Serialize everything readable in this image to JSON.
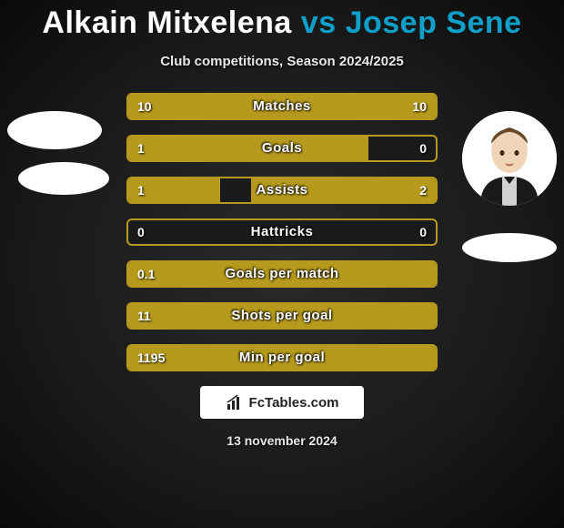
{
  "title": {
    "player1": "Alkain Mitxelena",
    "vs": "vs",
    "player2": "Josep Sene"
  },
  "subtitle": "Club competitions, Season 2024/2025",
  "colors": {
    "accent_bar": "#b69a1d",
    "title_p1": "#ffffff",
    "title_vs": "#0f9fc9",
    "title_p2": "#0f9fc9",
    "background_inner": "#2a2a2a",
    "background_outer": "#0a0a0a",
    "badge_bg": "#ffffff"
  },
  "bars": [
    {
      "label": "Matches",
      "left_val": "10",
      "right_val": "10",
      "left_pct": 50,
      "right_pct": 50
    },
    {
      "label": "Goals",
      "left_val": "1",
      "right_val": "0",
      "left_pct": 78,
      "right_pct": 0
    },
    {
      "label": "Assists",
      "left_val": "1",
      "right_val": "2",
      "left_pct": 30,
      "right_pct": 60
    },
    {
      "label": "Hattricks",
      "left_val": "0",
      "right_val": "0",
      "left_pct": 0,
      "right_pct": 0
    },
    {
      "label": "Goals per match",
      "left_val": "0.1",
      "right_val": "",
      "left_pct": 100,
      "right_pct": 0
    },
    {
      "label": "Shots per goal",
      "left_val": "11",
      "right_val": "",
      "left_pct": 100,
      "right_pct": 0
    },
    {
      "label": "Min per goal",
      "left_val": "1195",
      "right_val": "",
      "left_pct": 100,
      "right_pct": 0
    }
  ],
  "footer": {
    "site": "FcTables.com",
    "date": "13 november 2024"
  }
}
